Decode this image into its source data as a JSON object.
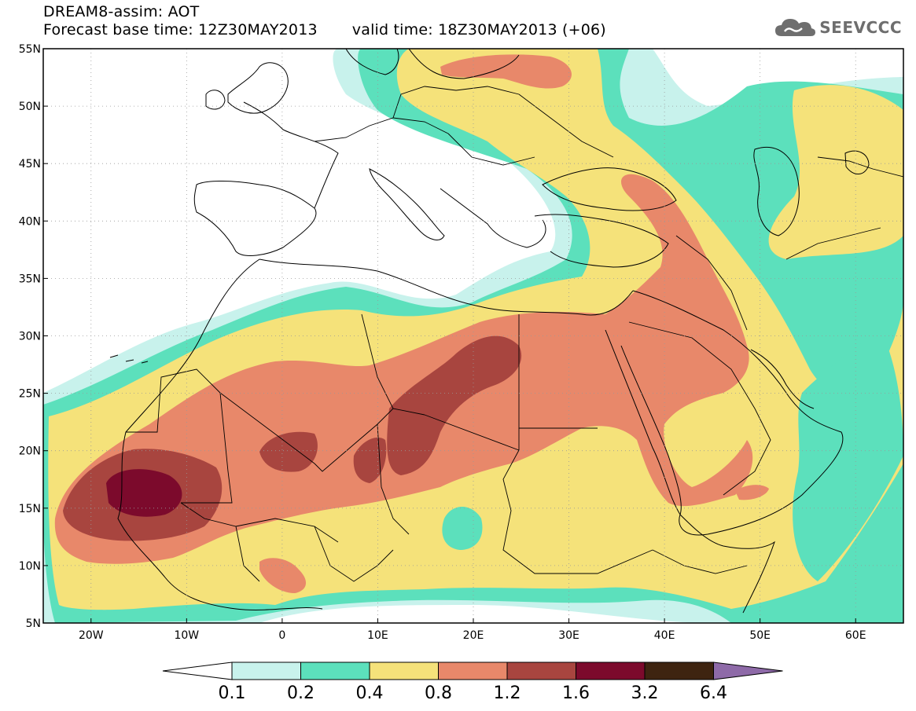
{
  "header": {
    "title_line1": "DREAM8-assim: AOT",
    "title_line2_left": "Forecast base time: 12Z30MAY2013",
    "title_line2_right": "valid time: 18Z30MAY2013 (+06)",
    "logo_text": "SEEVCCC"
  },
  "map": {
    "lon_labels": [
      "20W",
      "10W",
      "0",
      "10E",
      "20E",
      "30E",
      "40E",
      "50E",
      "60E"
    ],
    "lat_labels": [
      "55N",
      "50N",
      "45N",
      "40N",
      "35N",
      "30N",
      "25N",
      "20N",
      "15N",
      "10N",
      "5N"
    ],
    "lon_range": [
      -25,
      65
    ],
    "lat_range": [
      5,
      55
    ],
    "grid": "dotted"
  },
  "colorbar": {
    "labels": [
      "0.1",
      "0.2",
      "0.4",
      "0.8",
      "1.2",
      "1.6",
      "3.2",
      "6.4"
    ],
    "colors": [
      "#c8f2ec",
      "#5ce0bc",
      "#f5e27a",
      "#e8886a",
      "#a8453f",
      "#7c0a2c",
      "#3e2410",
      "#8e6aa8"
    ],
    "under_color": "#ffffff"
  },
  "colors": {
    "level_0_1": "#c8f2ec",
    "level_0_2": "#5ce0bc",
    "level_0_4": "#f5e27a",
    "level_0_8": "#e8886a",
    "level_1_2": "#a8453f",
    "level_1_6": "#7c0a2c",
    "background": "#ffffff"
  }
}
